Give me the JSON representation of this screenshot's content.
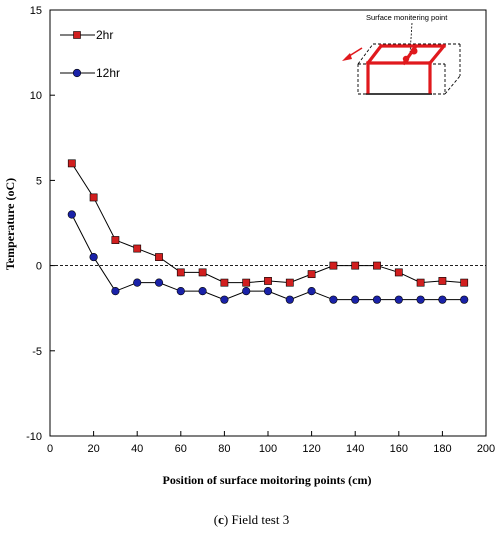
{
  "chart_data": {
    "type": "line",
    "xlabel": "Position of surface moitoring points (cm)",
    "ylabel": "Temperature (oC)",
    "xlim": [
      0,
      200
    ],
    "ylim": [
      -10,
      15
    ],
    "xticks": [
      0,
      20,
      40,
      60,
      80,
      100,
      120,
      140,
      160,
      180,
      200
    ],
    "yticks": [
      -10,
      -5,
      0,
      5,
      10,
      15
    ],
    "reference_line": 0,
    "legend_position": "top-left",
    "x": [
      10,
      20,
      30,
      40,
      50,
      60,
      70,
      80,
      90,
      100,
      110,
      120,
      130,
      140,
      150,
      160,
      170,
      180,
      190
    ],
    "series": [
      {
        "name": "2hr",
        "marker": "square",
        "color": "#d11f1f",
        "values": [
          6.0,
          4.0,
          1.5,
          1.0,
          0.5,
          -0.4,
          -0.4,
          -1.0,
          -1.0,
          -0.9,
          -1.0,
          -0.5,
          0.0,
          0.0,
          0.0,
          -0.4,
          -1.0,
          -0.9,
          -1.0
        ]
      },
      {
        "name": "12hr",
        "marker": "circle",
        "color": "#1a22a8",
        "values": [
          3.0,
          0.5,
          -1.5,
          -1.0,
          -1.0,
          -1.5,
          -1.5,
          -2.0,
          -1.5,
          -1.5,
          -2.0,
          -1.5,
          -2.0,
          -2.0,
          -2.0,
          -2.0,
          -2.0,
          -2.0,
          -2.0
        ]
      }
    ],
    "inset": {
      "label": "Surface monitering point"
    }
  },
  "caption": {
    "prefix": "(",
    "letter": "c",
    "suffix": ") Field test 3"
  }
}
